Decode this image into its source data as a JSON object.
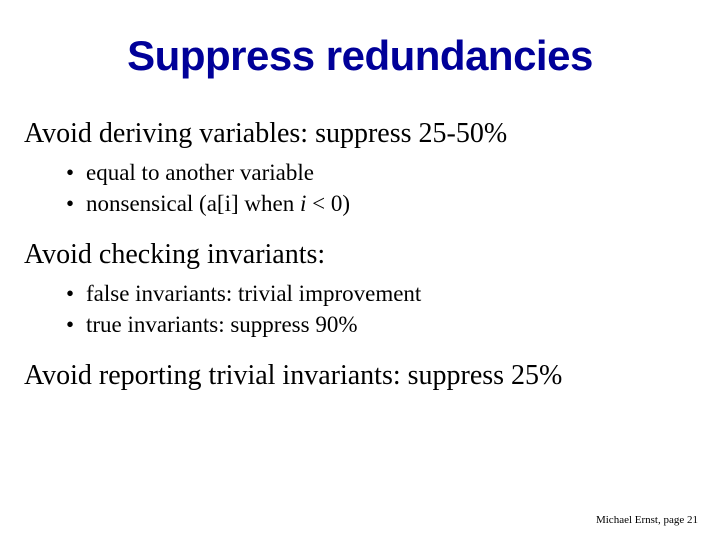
{
  "title": "Suppress redundancies",
  "title_color": "#000099",
  "title_font": "Verdana",
  "body_font": "Times New Roman",
  "background_color": "#ffffff",
  "sections": [
    {
      "line": "Avoid deriving variables:  suppress 25-50%",
      "bullets": [
        {
          "text": "equal to another variable"
        },
        {
          "prefix": "nonsensical  (a[i] when ",
          "italic": "i",
          "suffix": " < 0)"
        }
      ]
    },
    {
      "line": "Avoid checking invariants:",
      "bullets": [
        {
          "text": "false invariants:  trivial improvement"
        },
        {
          "text": "true invariants:  suppress 90%"
        }
      ]
    },
    {
      "line": "Avoid reporting trivial invariants:  suppress 25%",
      "bullets": []
    }
  ],
  "footer": "Michael Ernst, page 21"
}
